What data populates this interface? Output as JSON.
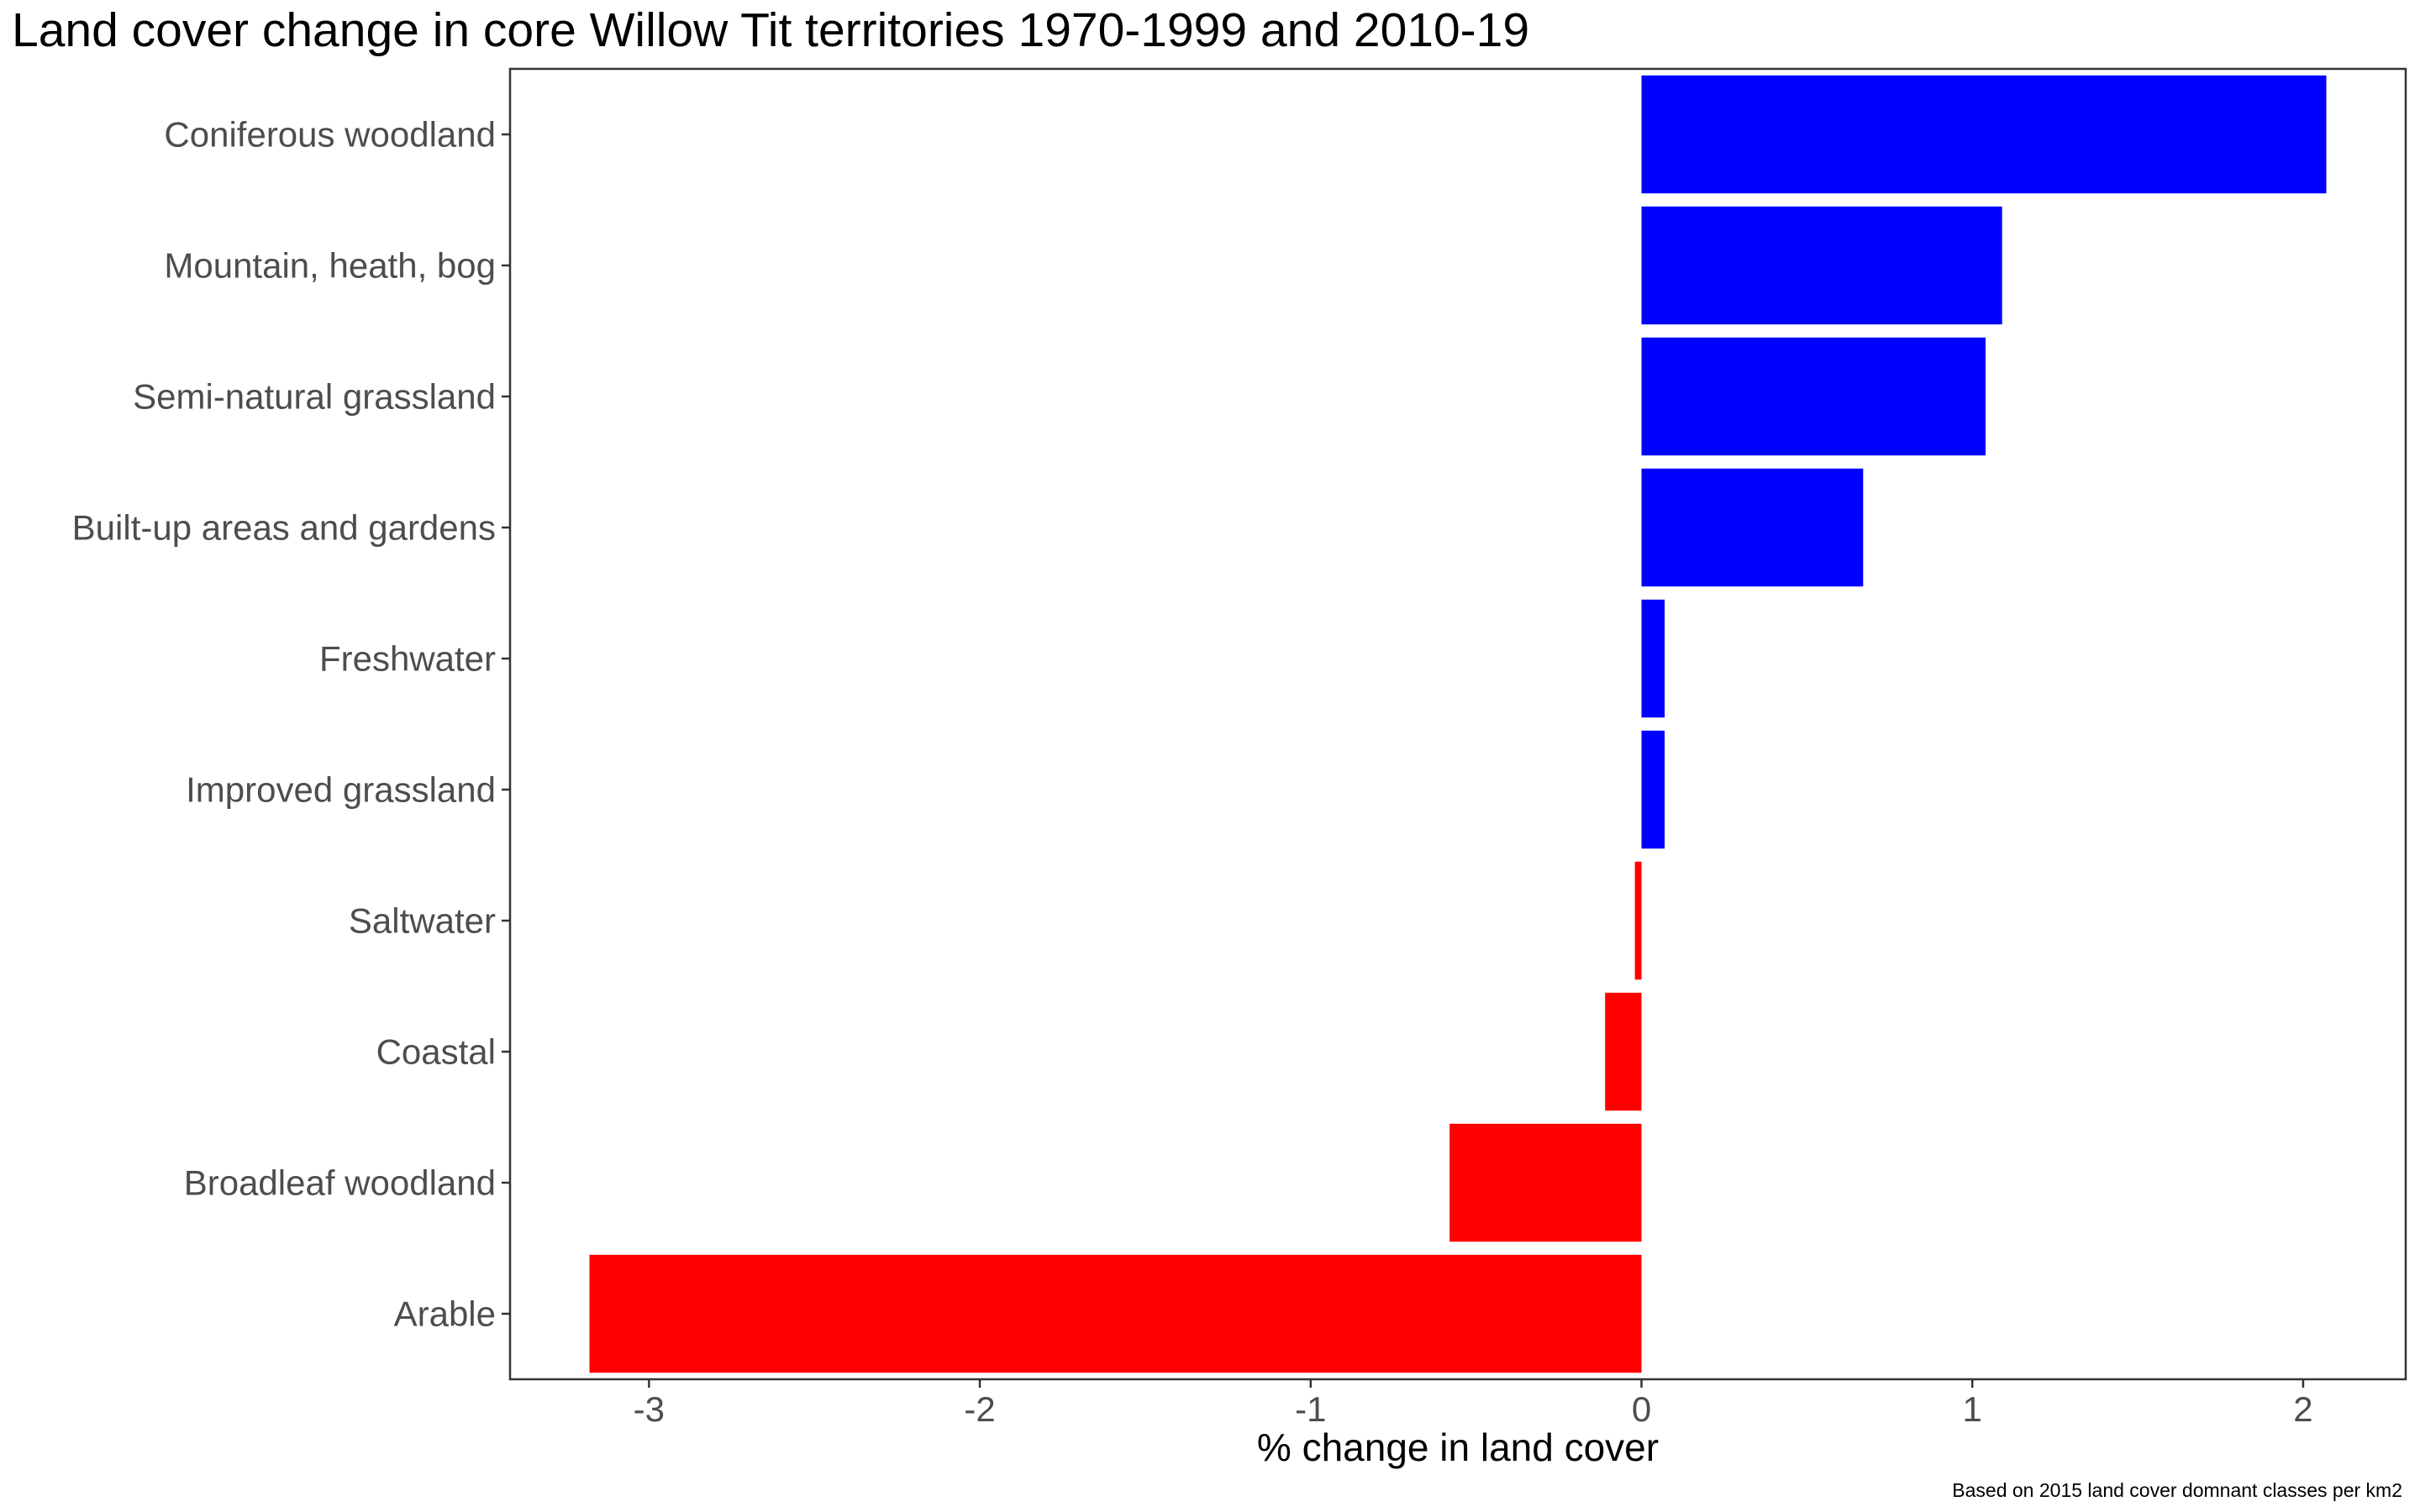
{
  "chart_data": {
    "type": "bar",
    "orientation": "horizontal",
    "title": "Land cover change in core Willow Tit territories 1970-1999 and 2010-19",
    "xlabel": "% change in land cover",
    "ylabel": "",
    "caption": "Based on 2015 land cover domnant classes per km2",
    "categories": [
      "Coniferous woodland",
      "Mountain, heath, bog",
      "Semi-natural grassland",
      "Built-up areas and gardens",
      "Freshwater",
      "Improved grassland",
      "Saltwater",
      "Coastal",
      "Broadleaf woodland",
      "Arable"
    ],
    "values": [
      2.07,
      1.09,
      1.04,
      0.67,
      0.07,
      0.07,
      -0.02,
      -0.11,
      -0.58,
      -3.18
    ],
    "xlim": [
      -3.42,
      2.31
    ],
    "xticks": [
      -3,
      -2,
      -1,
      0,
      1,
      2
    ],
    "xtick_labels": [
      "-3",
      "-2",
      "-1",
      "0",
      "1",
      "2"
    ],
    "grid": false,
    "legend": "none",
    "colors": {
      "positive": "#0000ff",
      "negative": "#ff0000",
      "axis": "#333333",
      "label_text": "#4d4d4d"
    }
  }
}
